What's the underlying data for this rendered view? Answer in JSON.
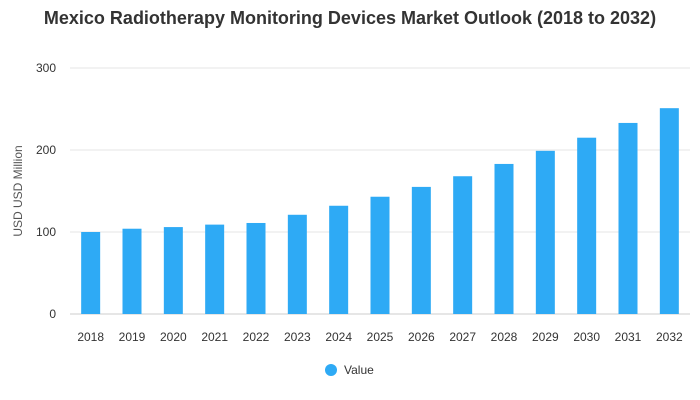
{
  "chart_data": {
    "type": "bar",
    "title": "Mexico Radiotherapy Monitoring Devices Market Outlook (2018 to 2032)",
    "xlabel": "",
    "ylabel": "USD USD Million",
    "ylim": [
      0,
      300
    ],
    "yticks": [
      0,
      100,
      200,
      300
    ],
    "grid": true,
    "legend_position": "bottom-center",
    "categories": [
      "2018",
      "2019",
      "2020",
      "2021",
      "2022",
      "2023",
      "2024",
      "2025",
      "2026",
      "2027",
      "2028",
      "2029",
      "2030",
      "2031",
      "2032"
    ],
    "series": [
      {
        "name": "Value",
        "color": "#2eaaf5",
        "values": [
          100,
          104,
          106,
          109,
          111,
          121,
          132,
          143,
          155,
          168,
          183,
          199,
          215,
          233,
          251
        ]
      }
    ]
  }
}
